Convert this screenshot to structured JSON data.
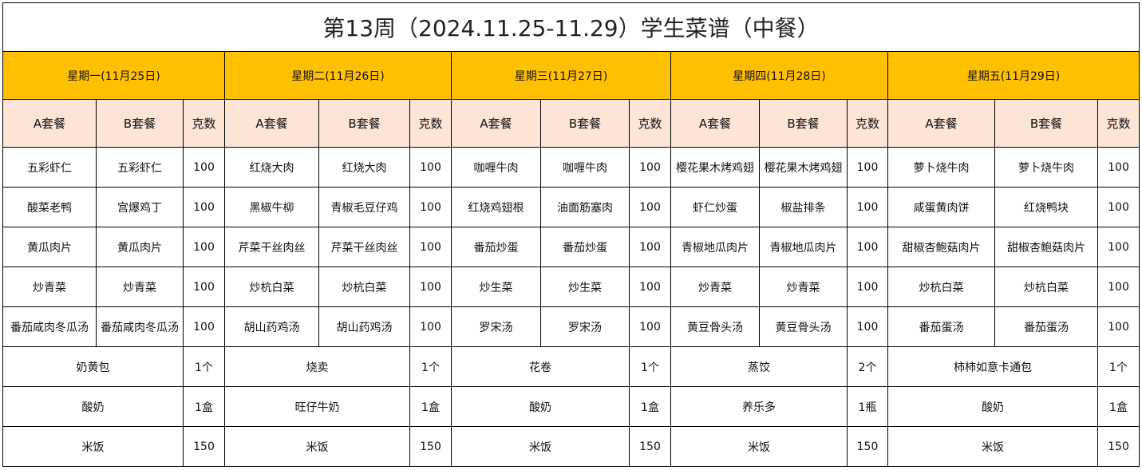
{
  "title": "第13周（2024.11.25-11.29）学生菜谱（中餐）",
  "colors": {
    "day_header_bg": "#FFC000",
    "sub_header_bg": "#FCE4D6"
  },
  "sub_headers": {
    "a": "A套餐",
    "b": "B套餐",
    "grams": "克数"
  },
  "days": [
    {
      "label": "星期一(11月25日)",
      "dishes": [
        [
          "五彩虾仁",
          "五彩虾仁",
          "100"
        ],
        [
          "酸菜老鸭",
          "宫爆鸡丁",
          "100"
        ],
        [
          "黄瓜肉片",
          "黄瓜肉片",
          "100"
        ],
        [
          "炒青菜",
          "炒青菜",
          "100"
        ],
        [
          "番茄咸肉冬瓜汤",
          "番茄咸肉冬瓜汤",
          "100"
        ]
      ],
      "extras": [
        [
          "奶黄包",
          "1个"
        ],
        [
          "酸奶",
          "1盒"
        ],
        [
          "米饭",
          "150"
        ]
      ]
    },
    {
      "label": "星期二(11月26日)",
      "dishes": [
        [
          "红烧大肉",
          "红烧大肉",
          "100"
        ],
        [
          "黑椒牛柳",
          "青椒毛豆仔鸡",
          "100"
        ],
        [
          "芹菜干丝肉丝",
          "芹菜干丝肉丝",
          "100"
        ],
        [
          "炒杭白菜",
          "炒杭白菜",
          "100"
        ],
        [
          "胡山药鸡汤",
          "胡山药鸡汤",
          "100"
        ]
      ],
      "extras": [
        [
          "烧卖",
          "1个"
        ],
        [
          "旺仔牛奶",
          "1盒"
        ],
        [
          "米饭",
          "150"
        ]
      ]
    },
    {
      "label": "星期三(11月27日)",
      "dishes": [
        [
          "咖喱牛肉",
          "咖喱牛肉",
          "100"
        ],
        [
          "红烧鸡翅根",
          "油面筋塞肉",
          "100"
        ],
        [
          "番茄炒蛋",
          "番茄炒蛋",
          "100"
        ],
        [
          "炒生菜",
          "炒生菜",
          "100"
        ],
        [
          "罗宋汤",
          "罗宋汤",
          "100"
        ]
      ],
      "extras": [
        [
          "花卷",
          "1个"
        ],
        [
          "酸奶",
          "1盒"
        ],
        [
          "米饭",
          "150"
        ]
      ]
    },
    {
      "label": "星期四(11月28日)",
      "dishes": [
        [
          "樱花果木烤鸡翅",
          "樱花果木烤鸡翅",
          "100"
        ],
        [
          "虾仁炒蛋",
          "椒盐排条",
          "100"
        ],
        [
          "青椒地瓜肉片",
          "青椒地瓜肉片",
          "100"
        ],
        [
          "炒青菜",
          "炒青菜",
          "100"
        ],
        [
          "黄豆骨头汤",
          "黄豆骨头汤",
          "100"
        ]
      ],
      "extras": [
        [
          "蒸饺",
          "2个"
        ],
        [
          "养乐多",
          "1瓶"
        ],
        [
          "米饭",
          "150"
        ]
      ]
    },
    {
      "label": "星期五(11月29日)",
      "dishes": [
        [
          "萝卜烧牛肉",
          "萝卜烧牛肉",
          "100"
        ],
        [
          "咸蛋黄肉饼",
          "红烧鸭块",
          "100"
        ],
        [
          "甜椒杏鲍菇肉片",
          "甜椒杏鲍菇肉片",
          "100"
        ],
        [
          "炒杭白菜",
          "炒杭白菜",
          "100"
        ],
        [
          "番茄蛋汤",
          "番茄蛋汤",
          "100"
        ]
      ],
      "extras": [
        [
          "柿柿如意卡通包",
          "1个"
        ],
        [
          "酸奶",
          "1盒"
        ],
        [
          "米饭",
          "150"
        ]
      ]
    }
  ]
}
